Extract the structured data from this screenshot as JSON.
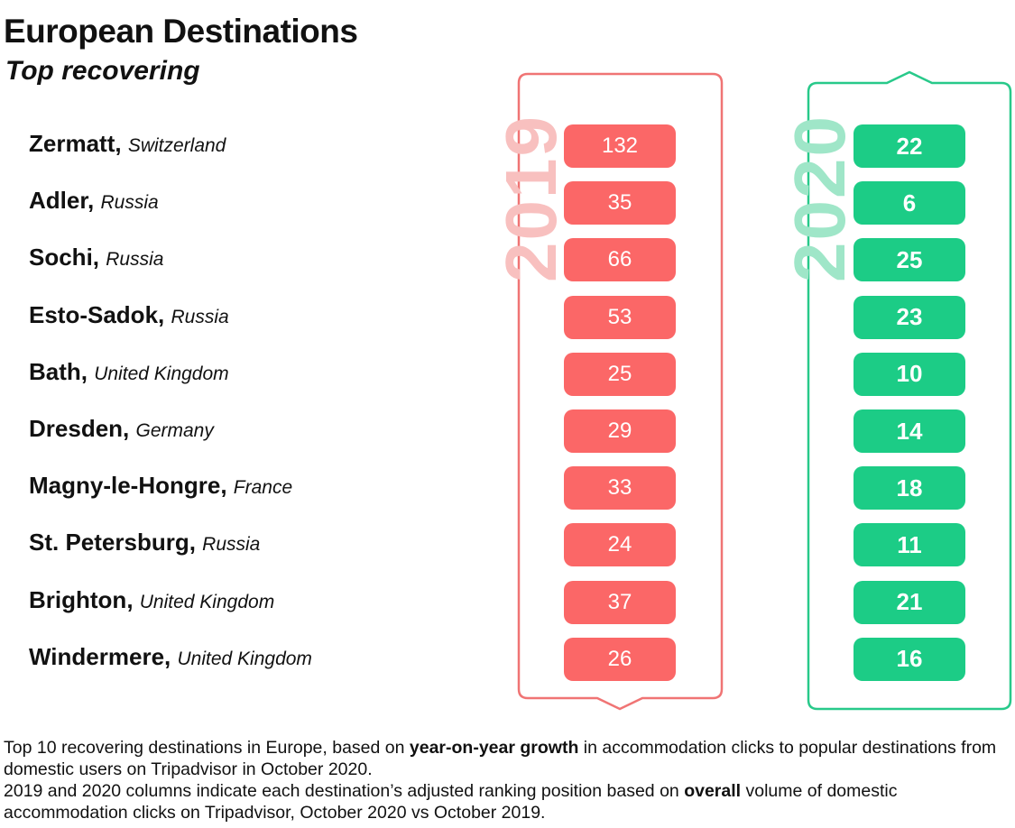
{
  "header": {
    "title": "European Destinations",
    "subtitle": "Top recovering"
  },
  "columns": {
    "year_2019": "2019",
    "year_2020": "2020"
  },
  "colors": {
    "red": "#fb6767",
    "red_frame": "#f07474",
    "red_light": "#f8c0bf",
    "green": "#1ccc86",
    "green_frame": "#28c98a",
    "green_light": "#9fe6c8"
  },
  "chart_data": {
    "type": "table",
    "title": "European Destinations",
    "subtitle": "Top recovering",
    "columns": [
      "2019",
      "2020"
    ],
    "rows": [
      {
        "city": "Zermatt",
        "country": "Switzerland",
        "rank_2019": 132,
        "rank_2020": 22
      },
      {
        "city": "Adler",
        "country": "Russia",
        "rank_2019": 35,
        "rank_2020": 6
      },
      {
        "city": "Sochi",
        "country": "Russia",
        "rank_2019": 66,
        "rank_2020": 25
      },
      {
        "city": "Esto-Sadok",
        "country": "Russia",
        "rank_2019": 53,
        "rank_2020": 23
      },
      {
        "city": "Bath",
        "country": "United Kingdom",
        "rank_2019": 25,
        "rank_2020": 10
      },
      {
        "city": "Dresden",
        "country": "Germany",
        "rank_2019": 29,
        "rank_2020": 14
      },
      {
        "city": "Magny-le-Hongre",
        "country": "France",
        "rank_2019": 33,
        "rank_2020": 18
      },
      {
        "city": "St. Petersburg",
        "country": "Russia",
        "rank_2019": 24,
        "rank_2020": 11
      },
      {
        "city": "Brighton",
        "country": "United Kingdom",
        "rank_2019": 37,
        "rank_2020": 21
      },
      {
        "city": "Windermere",
        "country": "United Kingdom",
        "rank_2019": 26,
        "rank_2020": 16
      }
    ]
  },
  "footnote": {
    "p1_a": "Top 10 recovering destinations in Europe, based on ",
    "p1_b": "year-on-year growth",
    "p1_c": " in accommodation clicks to popular destinations from domestic users on Tripadvisor in October 2020.",
    "p2_a": "2019 and 2020 columns indicate each destination’s adjusted ranking position based on ",
    "p2_b": "overall",
    "p2_c": " volume of domestic accommodation clicks on Tripadvisor, October 2020 vs October 2019."
  }
}
